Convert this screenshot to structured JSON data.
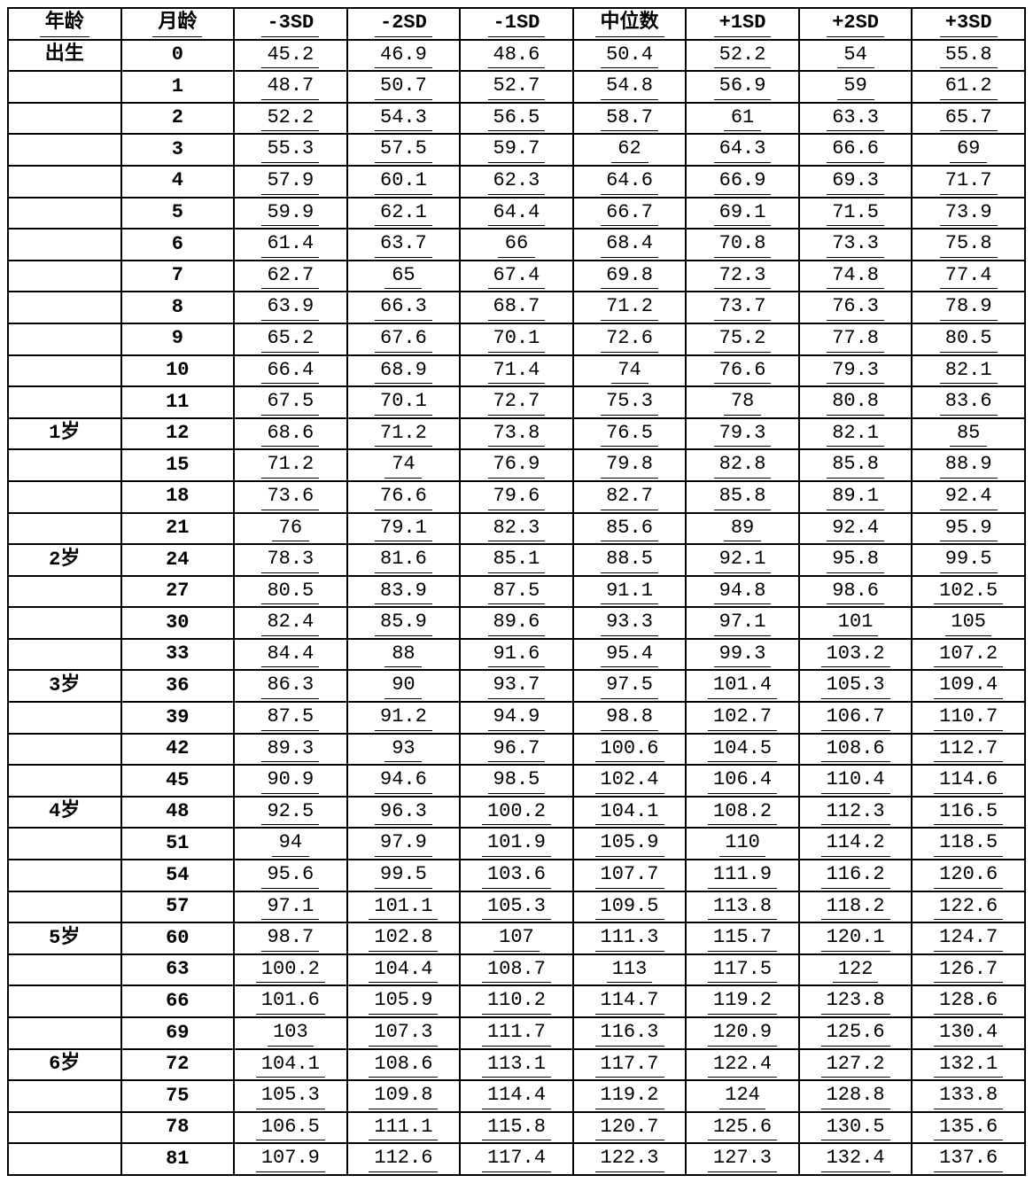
{
  "table": {
    "type": "table",
    "columns": [
      "年龄",
      "月龄",
      "-3SD",
      "-2SD",
      "-1SD",
      "中位数",
      "+1SD",
      "+2SD",
      "+3SD"
    ],
    "column_count": 9,
    "font_family": "SimSun / Courier-like monospace",
    "header_fontsize": 22,
    "cell_fontsize": 22,
    "border_color": "#000000",
    "border_width": 2,
    "background_color": "#ffffff",
    "text_color": "#000000",
    "bold_columns": [
      0,
      1
    ],
    "underline_data_cells": true,
    "rows": [
      [
        "出生",
        "0",
        "45.2",
        "46.9",
        "48.6",
        "50.4",
        "52.2",
        "54",
        "55.8"
      ],
      [
        "",
        "1",
        "48.7",
        "50.7",
        "52.7",
        "54.8",
        "56.9",
        "59",
        "61.2"
      ],
      [
        "",
        "2",
        "52.2",
        "54.3",
        "56.5",
        "58.7",
        "61",
        "63.3",
        "65.7"
      ],
      [
        "",
        "3",
        "55.3",
        "57.5",
        "59.7",
        "62",
        "64.3",
        "66.6",
        "69"
      ],
      [
        "",
        "4",
        "57.9",
        "60.1",
        "62.3",
        "64.6",
        "66.9",
        "69.3",
        "71.7"
      ],
      [
        "",
        "5",
        "59.9",
        "62.1",
        "64.4",
        "66.7",
        "69.1",
        "71.5",
        "73.9"
      ],
      [
        "",
        "6",
        "61.4",
        "63.7",
        "66",
        "68.4",
        "70.8",
        "73.3",
        "75.8"
      ],
      [
        "",
        "7",
        "62.7",
        "65",
        "67.4",
        "69.8",
        "72.3",
        "74.8",
        "77.4"
      ],
      [
        "",
        "8",
        "63.9",
        "66.3",
        "68.7",
        "71.2",
        "73.7",
        "76.3",
        "78.9"
      ],
      [
        "",
        "9",
        "65.2",
        "67.6",
        "70.1",
        "72.6",
        "75.2",
        "77.8",
        "80.5"
      ],
      [
        "",
        "10",
        "66.4",
        "68.9",
        "71.4",
        "74",
        "76.6",
        "79.3",
        "82.1"
      ],
      [
        "",
        "11",
        "67.5",
        "70.1",
        "72.7",
        "75.3",
        "78",
        "80.8",
        "83.6"
      ],
      [
        "1岁",
        "12",
        "68.6",
        "71.2",
        "73.8",
        "76.5",
        "79.3",
        "82.1",
        "85"
      ],
      [
        "",
        "15",
        "71.2",
        "74",
        "76.9",
        "79.8",
        "82.8",
        "85.8",
        "88.9"
      ],
      [
        "",
        "18",
        "73.6",
        "76.6",
        "79.6",
        "82.7",
        "85.8",
        "89.1",
        "92.4"
      ],
      [
        "",
        "21",
        "76",
        "79.1",
        "82.3",
        "85.6",
        "89",
        "92.4",
        "95.9"
      ],
      [
        "2岁",
        "24",
        "78.3",
        "81.6",
        "85.1",
        "88.5",
        "92.1",
        "95.8",
        "99.5"
      ],
      [
        "",
        "27",
        "80.5",
        "83.9",
        "87.5",
        "91.1",
        "94.8",
        "98.6",
        "102.5"
      ],
      [
        "",
        "30",
        "82.4",
        "85.9",
        "89.6",
        "93.3",
        "97.1",
        "101",
        "105"
      ],
      [
        "",
        "33",
        "84.4",
        "88",
        "91.6",
        "95.4",
        "99.3",
        "103.2",
        "107.2"
      ],
      [
        "3岁",
        "36",
        "86.3",
        "90",
        "93.7",
        "97.5",
        "101.4",
        "105.3",
        "109.4"
      ],
      [
        "",
        "39",
        "87.5",
        "91.2",
        "94.9",
        "98.8",
        "102.7",
        "106.7",
        "110.7"
      ],
      [
        "",
        "42",
        "89.3",
        "93",
        "96.7",
        "100.6",
        "104.5",
        "108.6",
        "112.7"
      ],
      [
        "",
        "45",
        "90.9",
        "94.6",
        "98.5",
        "102.4",
        "106.4",
        "110.4",
        "114.6"
      ],
      [
        "4岁",
        "48",
        "92.5",
        "96.3",
        "100.2",
        "104.1",
        "108.2",
        "112.3",
        "116.5"
      ],
      [
        "",
        "51",
        "94",
        "97.9",
        "101.9",
        "105.9",
        "110",
        "114.2",
        "118.5"
      ],
      [
        "",
        "54",
        "95.6",
        "99.5",
        "103.6",
        "107.7",
        "111.9",
        "116.2",
        "120.6"
      ],
      [
        "",
        "57",
        "97.1",
        "101.1",
        "105.3",
        "109.5",
        "113.8",
        "118.2",
        "122.6"
      ],
      [
        "5岁",
        "60",
        "98.7",
        "102.8",
        "107",
        "111.3",
        "115.7",
        "120.1",
        "124.7"
      ],
      [
        "",
        "63",
        "100.2",
        "104.4",
        "108.7",
        "113",
        "117.5",
        "122",
        "126.7"
      ],
      [
        "",
        "66",
        "101.6",
        "105.9",
        "110.2",
        "114.7",
        "119.2",
        "123.8",
        "128.6"
      ],
      [
        "",
        "69",
        "103",
        "107.3",
        "111.7",
        "116.3",
        "120.9",
        "125.6",
        "130.4"
      ],
      [
        "6岁",
        "72",
        "104.1",
        "108.6",
        "113.1",
        "117.7",
        "122.4",
        "127.2",
        "132.1"
      ],
      [
        "",
        "75",
        "105.3",
        "109.8",
        "114.4",
        "119.2",
        "124",
        "128.8",
        "133.8"
      ],
      [
        "",
        "78",
        "106.5",
        "111.1",
        "115.8",
        "120.7",
        "125.6",
        "130.5",
        "135.6"
      ],
      [
        "",
        "81",
        "107.9",
        "112.6",
        "117.4",
        "122.3",
        "127.3",
        "132.4",
        "137.6"
      ]
    ]
  }
}
